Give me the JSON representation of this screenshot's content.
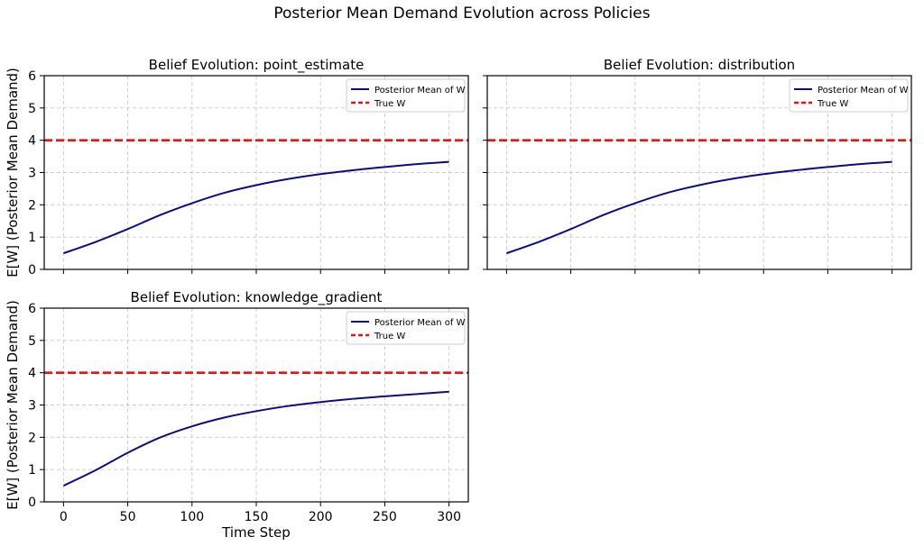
{
  "figure": {
    "suptitle": "Posterior Mean Demand Evolution across Policies"
  },
  "colors": {
    "posterior": "#0d0d80",
    "true_w": "#ee1111",
    "grid": "#c8c8c8"
  },
  "chart_data": [
    {
      "type": "line",
      "title": "Belief Evolution: point_estimate",
      "xlabel": "",
      "ylabel": "E[W] (Posterior Mean Demand)",
      "xlim": [
        -15,
        315
      ],
      "ylim": [
        0,
        6
      ],
      "xticks": [
        0,
        50,
        100,
        150,
        200,
        250,
        300
      ],
      "yticks": [
        0,
        1,
        2,
        3,
        4,
        5,
        6
      ],
      "show_xticklabels": false,
      "show_yticklabels": true,
      "grid": true,
      "legend_position": "top-right",
      "series": [
        {
          "name": "Posterior Mean of W",
          "style": "solid",
          "x": [
            0,
            25,
            50,
            75,
            100,
            125,
            150,
            175,
            200,
            225,
            250,
            275,
            300
          ],
          "y": [
            0.5,
            0.85,
            1.25,
            1.68,
            2.05,
            2.37,
            2.61,
            2.8,
            2.95,
            3.07,
            3.17,
            3.26,
            3.33
          ]
        },
        {
          "name": "True W",
          "style": "dashed",
          "hline": 4
        }
      ]
    },
    {
      "type": "line",
      "title": "Belief Evolution: distribution",
      "xlabel": "",
      "ylabel": "",
      "xlim": [
        -15,
        315
      ],
      "ylim": [
        0,
        6
      ],
      "xticks": [
        0,
        50,
        100,
        150,
        200,
        250,
        300
      ],
      "yticks": [
        0,
        1,
        2,
        3,
        4,
        5,
        6
      ],
      "show_xticklabels": false,
      "show_yticklabels": false,
      "grid": true,
      "legend_position": "top-right",
      "series": [
        {
          "name": "Posterior Mean of W",
          "style": "solid",
          "x": [
            0,
            25,
            50,
            75,
            100,
            125,
            150,
            175,
            200,
            225,
            250,
            275,
            300
          ],
          "y": [
            0.5,
            0.85,
            1.25,
            1.68,
            2.05,
            2.37,
            2.61,
            2.8,
            2.95,
            3.07,
            3.17,
            3.26,
            3.33
          ]
        },
        {
          "name": "True W",
          "style": "dashed",
          "hline": 4
        }
      ]
    },
    {
      "type": "line",
      "title": "Belief Evolution: knowledge_gradient",
      "xlabel": "Time Step",
      "ylabel": "E[W] (Posterior Mean Demand)",
      "xlim": [
        -15,
        315
      ],
      "ylim": [
        0,
        6
      ],
      "xticks": [
        0,
        50,
        100,
        150,
        200,
        250,
        300
      ],
      "yticks": [
        0,
        1,
        2,
        3,
        4,
        5,
        6
      ],
      "show_xticklabels": true,
      "show_yticklabels": true,
      "grid": true,
      "legend_position": "top-right",
      "series": [
        {
          "name": "Posterior Mean of W",
          "style": "solid",
          "x": [
            0,
            25,
            50,
            75,
            100,
            125,
            150,
            175,
            200,
            225,
            250,
            275,
            300
          ],
          "y": [
            0.5,
            0.98,
            1.52,
            1.99,
            2.34,
            2.61,
            2.81,
            2.97,
            3.09,
            3.19,
            3.27,
            3.34,
            3.41
          ]
        },
        {
          "name": "True W",
          "style": "dashed",
          "hline": 4
        }
      ]
    }
  ]
}
